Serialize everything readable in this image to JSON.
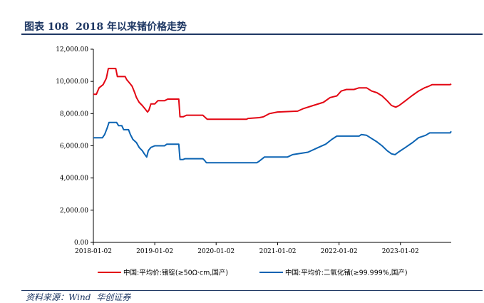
{
  "header": {
    "figure_label": "图表 108",
    "figure_title": "2018 年以来锗价格走势"
  },
  "source": {
    "prefix": "资料来源：Wind",
    "org": "华创证券"
  },
  "colors": {
    "series_ingot": "#e30613",
    "series_dioxide": "#0c64b3",
    "title": "#1f3864",
    "axis": "#000000"
  },
  "chart_data": {
    "type": "line",
    "title": "",
    "xlabel": "",
    "ylabel": "",
    "ylim": [
      0,
      12000
    ],
    "yticks": [
      "0.00",
      "2,000.00",
      "4,000.00",
      "6,000.00",
      "8,000.00",
      "10,000.00",
      "12,000.00"
    ],
    "yticks_values": [
      0,
      2000,
      4000,
      6000,
      8000,
      10000,
      12000
    ],
    "xlim": [
      "2018-01-02",
      "2023-10-31"
    ],
    "xticks": [
      "2018-01-02",
      "2019-01-02",
      "2020-01-02",
      "2021-01-02",
      "2022-01-02",
      "2023-01-02"
    ],
    "grid": false,
    "legend_position": "bottom",
    "series": [
      {
        "name": "中国:平均价:锗锭(≥50Ω·cm,国产)",
        "color": "#e30613",
        "points": [
          [
            "2018-01-02",
            9200
          ],
          [
            "2018-01-20",
            9200
          ],
          [
            "2018-02-05",
            9600
          ],
          [
            "2018-03-01",
            9800
          ],
          [
            "2018-03-20",
            10200
          ],
          [
            "2018-04-01",
            10800
          ],
          [
            "2018-05-15",
            10800
          ],
          [
            "2018-05-25",
            10300
          ],
          [
            "2018-07-10",
            10300
          ],
          [
            "2018-07-20",
            10100
          ],
          [
            "2018-08-05",
            9900
          ],
          [
            "2018-08-20",
            9700
          ],
          [
            "2018-09-05",
            9300
          ],
          [
            "2018-09-15",
            9000
          ],
          [
            "2018-10-01",
            8700
          ],
          [
            "2018-10-20",
            8500
          ],
          [
            "2018-11-05",
            8300
          ],
          [
            "2018-11-20",
            8100
          ],
          [
            "2018-11-28",
            8200
          ],
          [
            "2018-12-10",
            8600
          ],
          [
            "2019-01-02",
            8600
          ],
          [
            "2019-01-20",
            8800
          ],
          [
            "2019-03-01",
            8800
          ],
          [
            "2019-03-20",
            8900
          ],
          [
            "2019-05-25",
            8900
          ],
          [
            "2019-06-01",
            7800
          ],
          [
            "2019-06-20",
            7800
          ],
          [
            "2019-07-10",
            7900
          ],
          [
            "2019-10-15",
            7900
          ],
          [
            "2019-10-25",
            7800
          ],
          [
            "2019-11-10",
            7650
          ],
          [
            "2020-07-01",
            7650
          ],
          [
            "2020-07-10",
            7700
          ],
          [
            "2020-09-15",
            7750
          ],
          [
            "2020-10-10",
            7800
          ],
          [
            "2020-11-15",
            8000
          ],
          [
            "2021-01-01",
            8100
          ],
          [
            "2021-05-01",
            8150
          ],
          [
            "2021-06-01",
            8300
          ],
          [
            "2021-08-01",
            8500
          ],
          [
            "2021-10-01",
            8700
          ],
          [
            "2021-11-10",
            9000
          ],
          [
            "2021-12-20",
            9100
          ],
          [
            "2022-01-15",
            9400
          ],
          [
            "2022-02-15",
            9500
          ],
          [
            "2022-04-01",
            9500
          ],
          [
            "2022-05-01",
            9600
          ],
          [
            "2022-06-15",
            9600
          ],
          [
            "2022-07-15",
            9400
          ],
          [
            "2022-08-15",
            9300
          ],
          [
            "2022-09-15",
            9100
          ],
          [
            "2022-10-15",
            8800
          ],
          [
            "2022-11-10",
            8500
          ],
          [
            "2022-12-05",
            8400
          ],
          [
            "2022-12-25",
            8500
          ],
          [
            "2023-02-01",
            8800
          ],
          [
            "2023-03-10",
            9100
          ],
          [
            "2023-04-20",
            9400
          ],
          [
            "2023-05-25",
            9600
          ],
          [
            "2023-06-20",
            9700
          ],
          [
            "2023-07-10",
            9800
          ],
          [
            "2023-10-25",
            9800
          ],
          [
            "2023-10-31",
            9850
          ]
        ]
      },
      {
        "name": "中国:平均价:二氧化锗(≥99.999%,国产)",
        "color": "#0c64b3",
        "points": [
          [
            "2018-01-02",
            6500
          ],
          [
            "2018-02-25",
            6500
          ],
          [
            "2018-03-10",
            6700
          ],
          [
            "2018-03-25",
            7100
          ],
          [
            "2018-04-05",
            7450
          ],
          [
            "2018-05-20",
            7450
          ],
          [
            "2018-06-01",
            7250
          ],
          [
            "2018-06-20",
            7250
          ],
          [
            "2018-07-01",
            7000
          ],
          [
            "2018-07-30",
            7000
          ],
          [
            "2018-08-10",
            6700
          ],
          [
            "2018-08-25",
            6400
          ],
          [
            "2018-09-15",
            6200
          ],
          [
            "2018-10-01",
            5900
          ],
          [
            "2018-10-20",
            5700
          ],
          [
            "2018-11-01",
            5500
          ],
          [
            "2018-11-15",
            5300
          ],
          [
            "2018-11-25",
            5700
          ],
          [
            "2018-12-10",
            5900
          ],
          [
            "2019-01-02",
            6000
          ],
          [
            "2019-03-01",
            6000
          ],
          [
            "2019-03-15",
            6100
          ],
          [
            "2019-05-25",
            6100
          ],
          [
            "2019-06-01",
            5150
          ],
          [
            "2019-06-20",
            5150
          ],
          [
            "2019-07-01",
            5200
          ],
          [
            "2019-10-15",
            5200
          ],
          [
            "2019-10-25",
            5100
          ],
          [
            "2019-11-05",
            4950
          ],
          [
            "2020-09-01",
            4950
          ],
          [
            "2020-09-15",
            5050
          ],
          [
            "2020-10-15",
            5300
          ],
          [
            "2021-03-01",
            5300
          ],
          [
            "2021-04-01",
            5450
          ],
          [
            "2021-07-01",
            5600
          ],
          [
            "2021-09-01",
            5900
          ],
          [
            "2021-10-15",
            6100
          ],
          [
            "2021-11-20",
            6400
          ],
          [
            "2021-12-20",
            6600
          ],
          [
            "2022-05-01",
            6600
          ],
          [
            "2022-05-15",
            6700
          ],
          [
            "2022-06-15",
            6650
          ],
          [
            "2022-07-15",
            6450
          ],
          [
            "2022-08-15",
            6250
          ],
          [
            "2022-09-15",
            6000
          ],
          [
            "2022-10-15",
            5700
          ],
          [
            "2022-11-10",
            5500
          ],
          [
            "2022-12-01",
            5450
          ],
          [
            "2022-12-20",
            5600
          ],
          [
            "2023-02-01",
            5900
          ],
          [
            "2023-03-15",
            6200
          ],
          [
            "2023-04-20",
            6500
          ],
          [
            "2023-06-01",
            6650
          ],
          [
            "2023-06-25",
            6800
          ],
          [
            "2023-10-25",
            6800
          ],
          [
            "2023-10-31",
            6900
          ]
        ]
      }
    ]
  }
}
